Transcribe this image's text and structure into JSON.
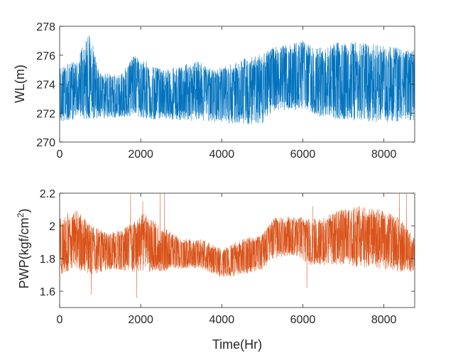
{
  "chart_data": [
    {
      "type": "line",
      "ylabel": "WL(m)",
      "xlabel": "",
      "xlim": [
        0,
        8760
      ],
      "ylim": [
        270,
        278
      ],
      "x_ticks": [
        0,
        2000,
        4000,
        6000,
        8000
      ],
      "y_ticks": [
        270,
        272,
        274,
        276,
        278
      ],
      "grid": false,
      "color": "#0072BD",
      "series": [
        {
          "profile": [
            {
              "x": 0,
              "low": 271.4,
              "high": 275.2
            },
            {
              "x": 400,
              "low": 271.5,
              "high": 275.6
            },
            {
              "x": 730,
              "low": 271.6,
              "high": 277.6
            },
            {
              "x": 1000,
              "low": 271.6,
              "high": 274.9
            },
            {
              "x": 1500,
              "low": 271.7,
              "high": 274.6
            },
            {
              "x": 1800,
              "low": 271.8,
              "high": 276.0
            },
            {
              "x": 2200,
              "low": 271.6,
              "high": 275.5
            },
            {
              "x": 2600,
              "low": 271.5,
              "high": 275.0
            },
            {
              "x": 3000,
              "low": 271.5,
              "high": 275.3
            },
            {
              "x": 3400,
              "low": 271.4,
              "high": 275.6
            },
            {
              "x": 3800,
              "low": 271.4,
              "high": 275.0
            },
            {
              "x": 4200,
              "low": 271.2,
              "high": 275.4
            },
            {
              "x": 4600,
              "low": 271.2,
              "high": 275.8
            },
            {
              "x": 5000,
              "low": 271.3,
              "high": 276.1
            },
            {
              "x": 5300,
              "low": 272.0,
              "high": 276.6
            },
            {
              "x": 5700,
              "low": 272.2,
              "high": 276.8
            },
            {
              "x": 6000,
              "low": 272.2,
              "high": 277.1
            },
            {
              "x": 6300,
              "low": 271.8,
              "high": 276.4
            },
            {
              "x": 6800,
              "low": 271.6,
              "high": 276.9
            },
            {
              "x": 7300,
              "low": 271.5,
              "high": 276.9
            },
            {
              "x": 7800,
              "low": 271.4,
              "high": 276.8
            },
            {
              "x": 8200,
              "low": 271.4,
              "high": 276.6
            },
            {
              "x": 8760,
              "low": 271.5,
              "high": 276.3
            }
          ]
        }
      ]
    },
    {
      "type": "line",
      "ylabel": "PWP(kgf/cm",
      "ylabel_sup": "2",
      "ylabel_end": ")",
      "xlabel": "Time(Hr)",
      "xlim": [
        0,
        8760
      ],
      "ylim": [
        1.5,
        2.2
      ],
      "x_ticks": [
        0,
        2000,
        4000,
        6000,
        8000
      ],
      "y_ticks": [
        1.6,
        1.8,
        2,
        2.2
      ],
      "y_tick_labels": [
        "1.6",
        "1.8",
        "2",
        "2.2"
      ],
      "grid": false,
      "color": "#D95319",
      "series": [
        {
          "profile": [
            {
              "x": 0,
              "low": 1.7,
              "high": 2.06
            },
            {
              "x": 400,
              "low": 1.74,
              "high": 2.1
            },
            {
              "x": 800,
              "low": 1.7,
              "high": 2.0
            },
            {
              "x": 1200,
              "low": 1.73,
              "high": 1.95
            },
            {
              "x": 1700,
              "low": 1.72,
              "high": 2.0
            },
            {
              "x": 2100,
              "low": 1.72,
              "high": 2.08
            },
            {
              "x": 2500,
              "low": 1.72,
              "high": 2.0
            },
            {
              "x": 3000,
              "low": 1.74,
              "high": 1.92
            },
            {
              "x": 3500,
              "low": 1.74,
              "high": 1.92
            },
            {
              "x": 4000,
              "low": 1.68,
              "high": 1.86
            },
            {
              "x": 4500,
              "low": 1.7,
              "high": 1.92
            },
            {
              "x": 5000,
              "low": 1.73,
              "high": 1.95
            },
            {
              "x": 5300,
              "low": 1.8,
              "high": 2.05
            },
            {
              "x": 5800,
              "low": 1.82,
              "high": 2.06
            },
            {
              "x": 6200,
              "low": 1.76,
              "high": 2.04
            },
            {
              "x": 6800,
              "low": 1.76,
              "high": 2.09
            },
            {
              "x": 7400,
              "low": 1.75,
              "high": 2.12
            },
            {
              "x": 8000,
              "low": 1.73,
              "high": 2.1
            },
            {
              "x": 8400,
              "low": 1.72,
              "high": 2.05
            },
            {
              "x": 8760,
              "low": 1.72,
              "high": 1.92
            }
          ],
          "spikes": [
            {
              "x": 780,
              "y": 1.58
            },
            {
              "x": 1750,
              "y": 2.2
            },
            {
              "x": 1900,
              "y": 1.56
            },
            {
              "x": 2050,
              "y": 2.15
            },
            {
              "x": 2480,
              "y": 2.2
            },
            {
              "x": 2580,
              "y": 2.2
            },
            {
              "x": 6100,
              "y": 1.62
            },
            {
              "x": 6250,
              "y": 2.12
            },
            {
              "x": 8380,
              "y": 2.2
            },
            {
              "x": 8560,
              "y": 2.2
            }
          ]
        }
      ]
    }
  ]
}
